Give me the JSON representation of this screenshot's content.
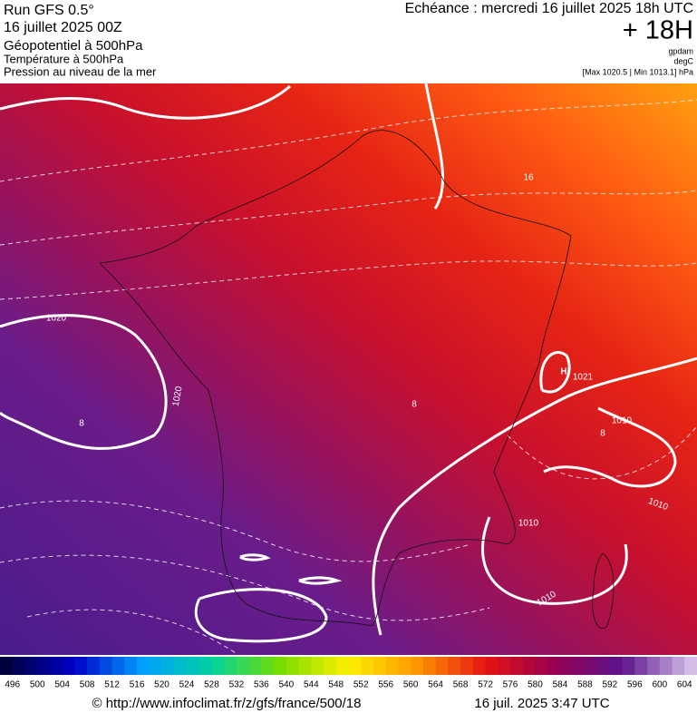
{
  "header": {
    "left": [
      "Run GFS 0.5°",
      "16 juillet 2025 00Z",
      "Géopotentiel à 500hPa",
      "Température à 500hPa",
      "Pression au niveau de la mer"
    ],
    "right": {
      "title": "Echéance : mercredi 16 juillet 2025 18h UTC",
      "lead": "+ 18H",
      "units": [
        "gpdam",
        "degC"
      ],
      "pressure": "[Max 1020.5 | Min 1013.1] hPa"
    }
  },
  "map": {
    "labels": [
      "1020",
      "1020",
      "H",
      "1021",
      "1010",
      "1010",
      "1010",
      "1010",
      "16",
      "8",
      "8",
      "8"
    ]
  },
  "colorbar": {
    "values": [
      496,
      500,
      504,
      508,
      512,
      516,
      520,
      524,
      528,
      532,
      536,
      540,
      544,
      548,
      552,
      556,
      560,
      564,
      568,
      572,
      576,
      580,
      584,
      588,
      592,
      596,
      600,
      604
    ]
  },
  "footer": {
    "source": "© http://www.infoclimat.fr/z/gfs/france/500/18",
    "date": "16 juil. 2025  3:47 UTC"
  }
}
